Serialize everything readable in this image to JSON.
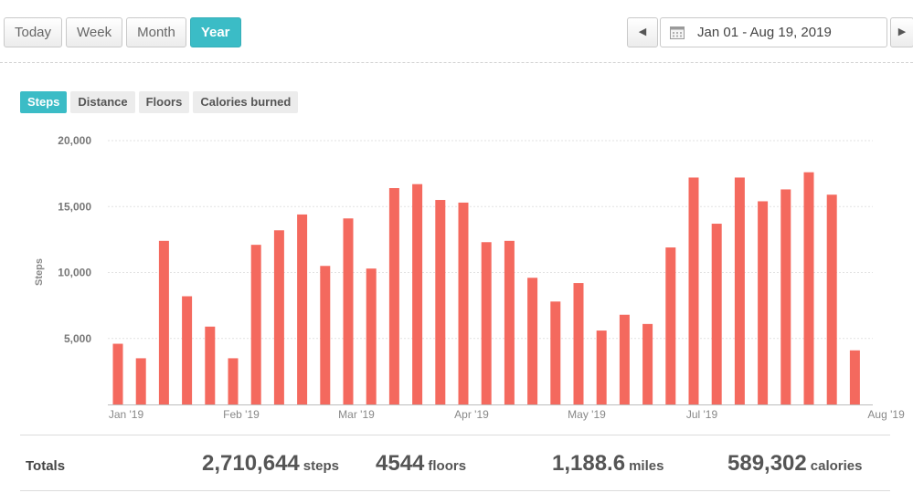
{
  "range_toggle": {
    "options": [
      "Today",
      "Week",
      "Month",
      "Year"
    ],
    "active": "Year"
  },
  "date_nav": {
    "prev_icon": "triangle-left-icon",
    "calendar_icon": "calendar-icon",
    "range_text": "Jan 01 - Aug 19, 2019",
    "next_icon": "triangle-right-icon"
  },
  "metric_tabs": {
    "options": [
      "Steps",
      "Distance",
      "Floors",
      "Calories burned"
    ],
    "active": "Steps"
  },
  "colors": {
    "accent": "#3bbcc6",
    "bar": "#f4695e",
    "grid": "#e2e2e2"
  },
  "chart_data": {
    "type": "bar",
    "ylabel": "Steps",
    "ylim": [
      0,
      20000
    ],
    "y_ticks": [
      5000,
      10000,
      15000,
      20000
    ],
    "y_tick_labels": [
      "5,000",
      "10,000",
      "15,000",
      "20,000"
    ],
    "grid": true,
    "x_tick_labels": [
      "Jan '19",
      "Feb '19",
      "Mar '19",
      "Apr '19",
      "May '19",
      "Jul '19",
      "Aug '19"
    ],
    "x_tick_bar_index": [
      0,
      5,
      10,
      15,
      20,
      25,
      33
    ],
    "values": [
      4600,
      3500,
      12400,
      8200,
      5900,
      3500,
      12100,
      13200,
      14400,
      10500,
      14100,
      10300,
      16400,
      16700,
      15500,
      15300,
      12300,
      12400,
      9600,
      7800,
      9200,
      5600,
      6800,
      6100,
      11900,
      17200,
      13700,
      17200,
      15400,
      16300,
      17600,
      15900,
      4100
    ]
  },
  "totals": {
    "label": "Totals",
    "items": [
      {
        "value": "2,710,644",
        "unit": "steps"
      },
      {
        "value": "4544",
        "unit": "floors"
      },
      {
        "value": "1,188.6",
        "unit": "miles"
      },
      {
        "value": "589,302",
        "unit": "calories"
      }
    ]
  }
}
